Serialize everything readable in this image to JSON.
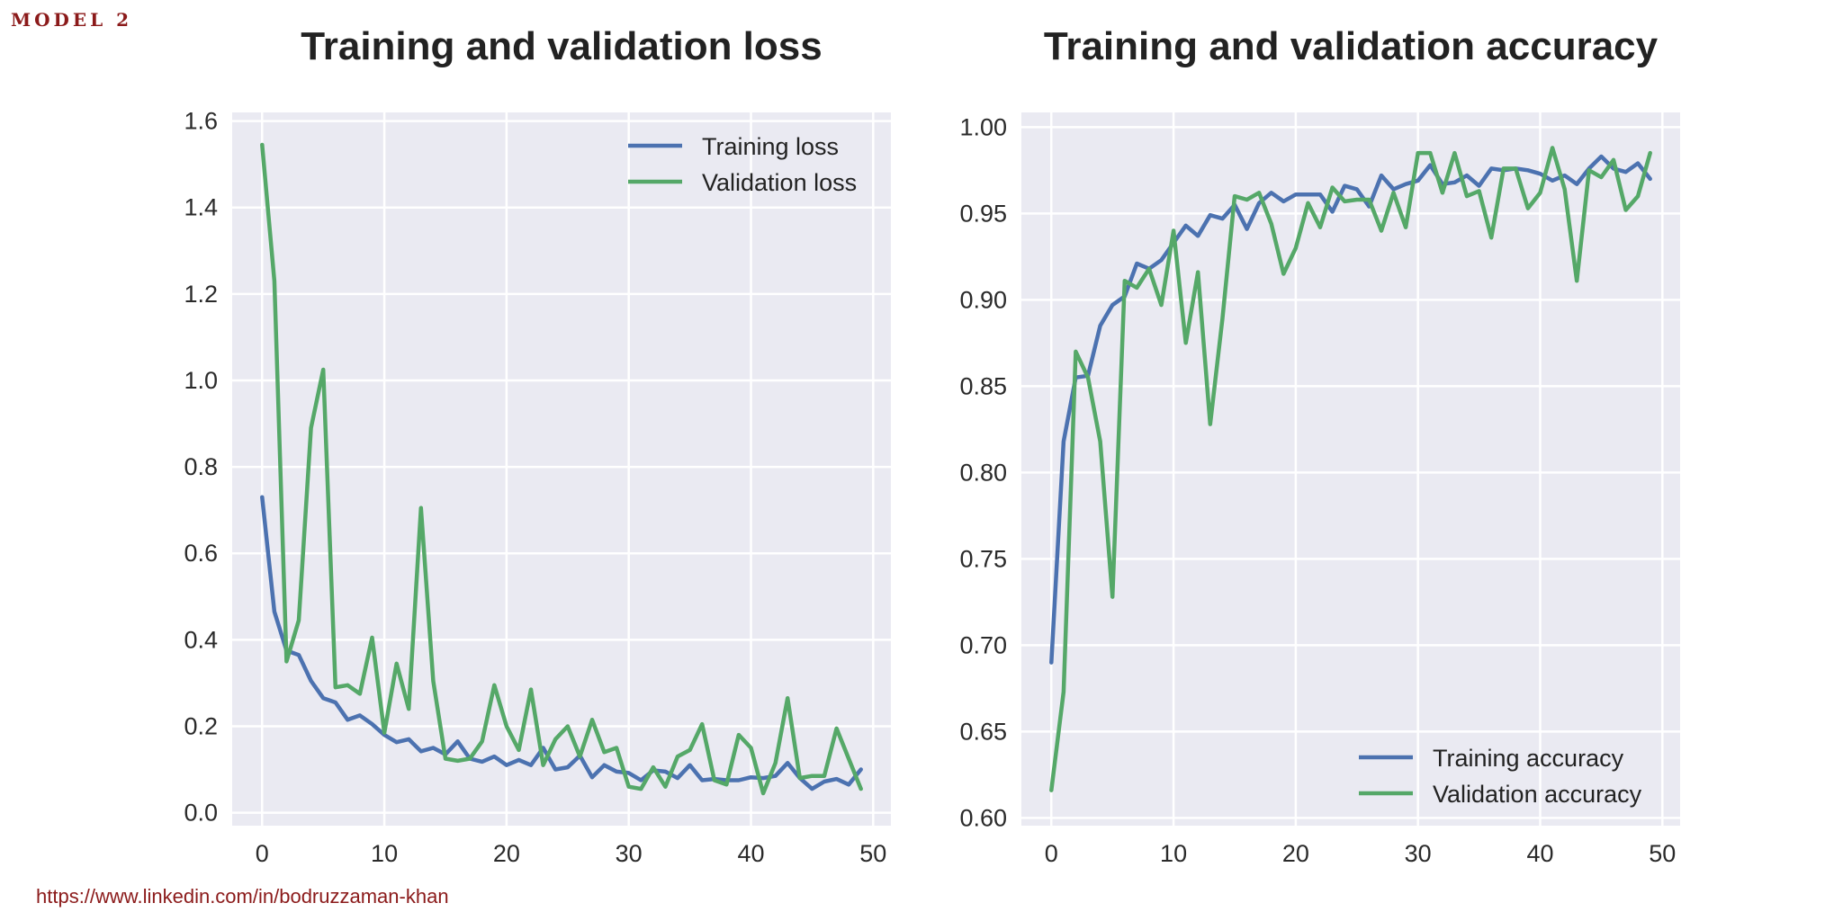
{
  "header": {
    "model_label": "MODEL 2"
  },
  "footer": {
    "link_text": "https://www.linkedin.com/in/bodruzzaman-khan"
  },
  "colors": {
    "training": "#4c72b0",
    "validation": "#55a868",
    "plot_bg": "#eaeaf2",
    "grid": "#ffffff"
  },
  "chart_data": [
    {
      "type": "line",
      "title": "Training and validation loss",
      "xlabel": "",
      "ylabel": "",
      "xlim": [
        -2.45,
        51.45
      ],
      "ylim": [
        -0.03,
        1.62
      ],
      "xticks": [
        0,
        10,
        20,
        30,
        40,
        50
      ],
      "xtick_labels": [
        "0",
        "10",
        "20",
        "30",
        "40",
        "50"
      ],
      "yticks": [
        0.0,
        0.2,
        0.4,
        0.6,
        0.8,
        1.0,
        1.2,
        1.4,
        1.6
      ],
      "ytick_labels": [
        "0.0",
        "0.2",
        "0.4",
        "0.6",
        "0.8",
        "1.0",
        "1.2",
        "1.4",
        "1.6"
      ],
      "grid": true,
      "legend_position": "upper right",
      "x": [
        0,
        1,
        2,
        3,
        4,
        5,
        6,
        7,
        8,
        9,
        10,
        11,
        12,
        13,
        14,
        15,
        16,
        17,
        18,
        19,
        20,
        21,
        22,
        23,
        24,
        25,
        26,
        27,
        28,
        29,
        30,
        31,
        32,
        33,
        34,
        35,
        36,
        37,
        38,
        39,
        40,
        41,
        42,
        43,
        44,
        45,
        46,
        47,
        48,
        49
      ],
      "series": [
        {
          "name": "Training loss",
          "color": "#4c72b0",
          "values": [
            0.73,
            0.465,
            0.375,
            0.365,
            0.305,
            0.265,
            0.255,
            0.215,
            0.225,
            0.205,
            0.18,
            0.163,
            0.17,
            0.142,
            0.15,
            0.135,
            0.165,
            0.125,
            0.118,
            0.13,
            0.11,
            0.122,
            0.11,
            0.15,
            0.1,
            0.105,
            0.132,
            0.082,
            0.11,
            0.095,
            0.092,
            0.075,
            0.098,
            0.095,
            0.08,
            0.11,
            0.075,
            0.078,
            0.075,
            0.075,
            0.082,
            0.08,
            0.085,
            0.115,
            0.08,
            0.055,
            0.072,
            0.078,
            0.065,
            0.1
          ]
        },
        {
          "name": "Validation loss",
          "color": "#55a868",
          "values": [
            1.545,
            1.23,
            0.35,
            0.445,
            0.89,
            1.025,
            0.29,
            0.295,
            0.275,
            0.405,
            0.185,
            0.345,
            0.24,
            0.705,
            0.305,
            0.125,
            0.12,
            0.125,
            0.165,
            0.295,
            0.2,
            0.145,
            0.285,
            0.11,
            0.17,
            0.2,
            0.13,
            0.215,
            0.14,
            0.15,
            0.06,
            0.055,
            0.105,
            0.06,
            0.13,
            0.145,
            0.205,
            0.075,
            0.065,
            0.18,
            0.15,
            0.045,
            0.115,
            0.265,
            0.08,
            0.085,
            0.085,
            0.195,
            0.125,
            0.055
          ]
        }
      ]
    },
    {
      "type": "line",
      "title": "Training and validation accuracy",
      "xlabel": "",
      "ylabel": "",
      "xlim": [
        -2.45,
        51.45
      ],
      "ylim": [
        0.5955,
        1.0085
      ],
      "xticks": [
        0,
        10,
        20,
        30,
        40,
        50
      ],
      "xtick_labels": [
        "0",
        "10",
        "20",
        "30",
        "40",
        "50"
      ],
      "yticks": [
        0.6,
        0.65,
        0.7,
        0.75,
        0.8,
        0.85,
        0.9,
        0.95,
        1.0
      ],
      "ytick_labels": [
        "0.60",
        "0.65",
        "0.70",
        "0.75",
        "0.80",
        "0.85",
        "0.90",
        "0.95",
        "1.00"
      ],
      "grid": true,
      "legend_position": "lower right",
      "x": [
        0,
        1,
        2,
        3,
        4,
        5,
        6,
        7,
        8,
        9,
        10,
        11,
        12,
        13,
        14,
        15,
        16,
        17,
        18,
        19,
        20,
        21,
        22,
        23,
        24,
        25,
        26,
        27,
        28,
        29,
        30,
        31,
        32,
        33,
        34,
        35,
        36,
        37,
        38,
        39,
        40,
        41,
        42,
        43,
        44,
        45,
        46,
        47,
        48,
        49
      ],
      "series": [
        {
          "name": "Training accuracy",
          "color": "#4c72b0",
          "values": [
            0.69,
            0.818,
            0.855,
            0.856,
            0.885,
            0.897,
            0.902,
            0.921,
            0.918,
            0.923,
            0.933,
            0.943,
            0.937,
            0.949,
            0.947,
            0.955,
            0.941,
            0.956,
            0.962,
            0.957,
            0.961,
            0.961,
            0.961,
            0.951,
            0.966,
            0.964,
            0.954,
            0.972,
            0.964,
            0.967,
            0.969,
            0.978,
            0.967,
            0.968,
            0.972,
            0.966,
            0.976,
            0.975,
            0.976,
            0.975,
            0.973,
            0.969,
            0.972,
            0.967,
            0.976,
            0.983,
            0.976,
            0.974,
            0.979,
            0.97
          ]
        },
        {
          "name": "Validation accuracy",
          "color": "#55a868",
          "values": [
            0.616,
            0.673,
            0.87,
            0.855,
            0.818,
            0.728,
            0.911,
            0.907,
            0.918,
            0.897,
            0.94,
            0.875,
            0.916,
            0.828,
            0.889,
            0.96,
            0.958,
            0.962,
            0.944,
            0.915,
            0.93,
            0.956,
            0.942,
            0.965,
            0.957,
            0.958,
            0.958,
            0.94,
            0.962,
            0.942,
            0.985,
            0.985,
            0.962,
            0.985,
            0.96,
            0.963,
            0.936,
            0.976,
            0.976,
            0.953,
            0.962,
            0.988,
            0.964,
            0.911,
            0.975,
            0.971,
            0.981,
            0.952,
            0.96,
            0.985
          ]
        }
      ]
    }
  ]
}
